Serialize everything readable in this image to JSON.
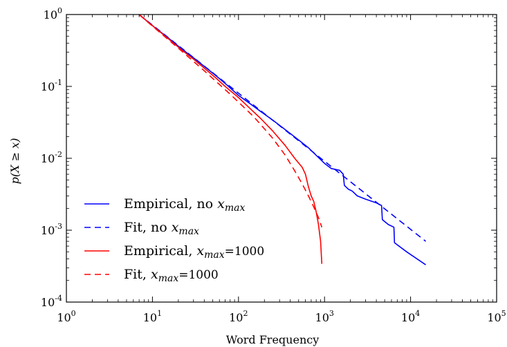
{
  "chart_data": {
    "type": "line",
    "xlabel": "Word Frequency",
    "ylabel": "p(X ≥ x)",
    "xscale": "log",
    "yscale": "log",
    "xlim": [
      1,
      100000
    ],
    "ylim": [
      0.0001,
      1
    ],
    "x_tick_labels": [
      {
        "base": "10",
        "exp": "0"
      },
      {
        "base": "10",
        "exp": "1"
      },
      {
        "base": "10",
        "exp": "2"
      },
      {
        "base": "10",
        "exp": "3"
      },
      {
        "base": "10",
        "exp": "4"
      },
      {
        "base": "10",
        "exp": "5"
      }
    ],
    "y_tick_labels": [
      {
        "base": "10",
        "exp": "0"
      },
      {
        "base": "10",
        "exp": "-1"
      },
      {
        "base": "10",
        "exp": "-2"
      },
      {
        "base": "10",
        "exp": "-3"
      },
      {
        "base": "10",
        "exp": "-4"
      }
    ],
    "legend_position": "bottom-left",
    "series": [
      {
        "name_prefix": "Empirical, no ",
        "name_math": "x",
        "name_sub": "max",
        "name_suffix": "",
        "color": "#0000ff",
        "style": "solid",
        "points": [
          [
            7,
            1.0
          ],
          [
            10,
            0.7
          ],
          [
            15,
            0.48
          ],
          [
            22,
            0.33
          ],
          [
            30,
            0.25
          ],
          [
            40,
            0.19
          ],
          [
            55,
            0.14
          ],
          [
            70,
            0.11
          ],
          [
            100,
            0.075
          ],
          [
            130,
            0.06
          ],
          [
            180,
            0.045
          ],
          [
            250,
            0.034
          ],
          [
            350,
            0.025
          ],
          [
            500,
            0.018
          ],
          [
            650,
            0.014
          ],
          [
            800,
            0.011
          ],
          [
            1000,
            0.0085
          ],
          [
            1200,
            0.0072
          ],
          [
            1500,
            0.0068
          ],
          [
            1650,
            0.006
          ],
          [
            1700,
            0.0042
          ],
          [
            1900,
            0.0037
          ],
          [
            2100,
            0.0035
          ],
          [
            2400,
            0.003
          ],
          [
            3000,
            0.0027
          ],
          [
            4000,
            0.0024
          ],
          [
            4600,
            0.0022
          ],
          [
            4700,
            0.0014
          ],
          [
            5500,
            0.0012
          ],
          [
            6400,
            0.0011
          ],
          [
            6500,
            0.00067
          ],
          [
            9000,
            0.0005
          ],
          [
            15000,
            0.00033
          ]
        ]
      },
      {
        "name_prefix": "Fit, no ",
        "name_math": "x",
        "name_sub": "max",
        "name_suffix": "",
        "color": "#0000ff",
        "style": "dashed",
        "points": [
          [
            7,
            1.0
          ],
          [
            15000,
            0.0007
          ]
        ]
      },
      {
        "name_prefix": "Empirical, ",
        "name_math": "x",
        "name_sub": "max",
        "name_suffix": "=1000",
        "color": "#ff0000",
        "style": "solid",
        "points": [
          [
            7,
            1.0
          ],
          [
            10,
            0.7
          ],
          [
            15,
            0.47
          ],
          [
            22,
            0.32
          ],
          [
            30,
            0.24
          ],
          [
            40,
            0.18
          ],
          [
            55,
            0.13
          ],
          [
            70,
            0.1
          ],
          [
            100,
            0.07
          ],
          [
            130,
            0.052
          ],
          [
            180,
            0.036
          ],
          [
            250,
            0.024
          ],
          [
            350,
            0.015
          ],
          [
            450,
            0.01
          ],
          [
            550,
            0.0075
          ],
          [
            600,
            0.006
          ],
          [
            650,
            0.004
          ],
          [
            700,
            0.003
          ],
          [
            750,
            0.0025
          ],
          [
            800,
            0.0018
          ],
          [
            850,
            0.0012
          ],
          [
            900,
            0.0007
          ],
          [
            930,
            0.00034
          ]
        ]
      },
      {
        "name_prefix": "Fit, ",
        "name_math": "x",
        "name_sub": "max",
        "name_suffix": "=1000",
        "color": "#ff0000",
        "style": "dashed",
        "points": [
          [
            7,
            1.0
          ],
          [
            10,
            0.69
          ],
          [
            20,
            0.34
          ],
          [
            40,
            0.165
          ],
          [
            80,
            0.078
          ],
          [
            150,
            0.038
          ],
          [
            250,
            0.019
          ],
          [
            350,
            0.011
          ],
          [
            450,
            0.0067
          ],
          [
            550,
            0.0044
          ],
          [
            650,
            0.003
          ],
          [
            750,
            0.0021
          ],
          [
            850,
            0.0015
          ],
          [
            930,
            0.0011
          ]
        ]
      }
    ]
  }
}
